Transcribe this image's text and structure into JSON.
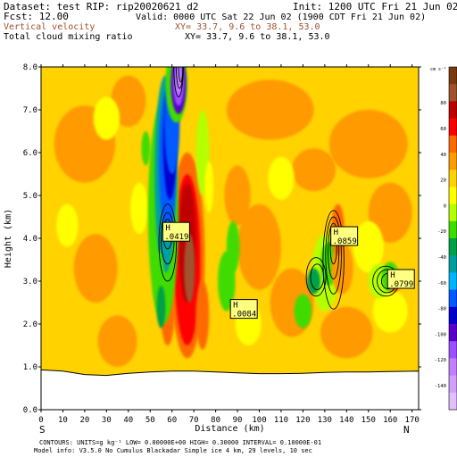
{
  "header": {
    "line1_left": "Dataset: test   RIP: rip20020621 d2",
    "line1_right": "Init: 1200 UTC Fri 21 Jun 02",
    "line2_left": "Fcst:    12.00",
    "line2_right": "Valid: 0000 UTC Sat 22 Jun 02 (1900 CDT Fri 21 Jun 02)",
    "line3_left": "Vertical velocity",
    "line3_right": "XY=  33.7,  9.6 to  38.1, 53.0",
    "line4_left": "Total cloud mixing ratio",
    "line4_right": "XY=  33.7,  9.6 to  38.1, 53.0"
  },
  "footer": {
    "line1": "CONTOURS:  UNITS=g kg⁻¹  LOW= 0.00000E+00  HIGH= 0.30000      INTERVAL=  0.10000E-01",
    "line2": "Model info: V3.5.0 No Cumulus Blackadar  Simple ice    4 km,   29 levels,   10 sec"
  },
  "colors": {
    "background_field": "#ffd200",
    "terrain": "#ffffff",
    "contour": "#000000"
  },
  "chart_data": {
    "type": "heatmap",
    "xlabel": "Distance (km)",
    "ylabel": "Height (km)",
    "xlim": [
      0,
      173
    ],
    "ylim": [
      0,
      8
    ],
    "x_ticks": [
      "0",
      "10",
      "20",
      "30",
      "40",
      "50",
      "60",
      "70",
      "80",
      "90",
      "100",
      "110",
      "120",
      "130",
      "140",
      "150",
      "160",
      "170"
    ],
    "y_ticks": [
      "0.0",
      "1.0",
      "2.0",
      "3.0",
      "4.0",
      "5.0",
      "6.0",
      "7.0",
      "8.0"
    ],
    "end_labels": {
      "left": "S",
      "right": "N"
    },
    "colorbar": {
      "units": "cm s⁻¹",
      "labels": [
        "80",
        "60",
        "40",
        "20",
        "0",
        "-20",
        "-40",
        "-60",
        "-80",
        "-100",
        "-120",
        "-140"
      ],
      "colors": [
        "#7a3a10",
        "#a0522d",
        "#c00000",
        "#ff0000",
        "#ff6a00",
        "#ff9a00",
        "#ffd200",
        "#ffff00",
        "#b5ff00",
        "#3fdc00",
        "#00a04a",
        "#00a0a0",
        "#00b4ff",
        "#005aff",
        "#0000d0",
        "#5a00c8",
        "#9a50ff",
        "#c080ff",
        "#d0a0ff",
        "#e0c0ff"
      ]
    },
    "vertical_velocity_features": [
      {
        "kind": "updraft",
        "x_center": 66,
        "y_center": 3.6,
        "max_value": 60
      },
      {
        "kind": "downdraft",
        "x_center": 60,
        "y_center": 5.5,
        "min_value": -100
      },
      {
        "kind": "downdraft",
        "x_center": 63,
        "y_center": 7.6,
        "min_value": -140
      }
    ],
    "cloud_highs": [
      {
        "label": "H",
        "value": ".0419",
        "x": 57,
        "y": 4.1
      },
      {
        "label": "H",
        "value": ".0859",
        "x": 134,
        "y": 4.0
      },
      {
        "label": "H",
        "value": ".0084",
        "x": 88,
        "y": 2.3
      },
      {
        "label": "H",
        "value": ".0799",
        "x": 160,
        "y": 3.0
      }
    ],
    "terrain_height_km": [
      [
        0,
        0.93
      ],
      [
        10,
        0.9
      ],
      [
        20,
        0.82
      ],
      [
        30,
        0.8
      ],
      [
        40,
        0.85
      ],
      [
        50,
        0.88
      ],
      [
        60,
        0.9
      ],
      [
        70,
        0.9
      ],
      [
        80,
        0.88
      ],
      [
        90,
        0.86
      ],
      [
        100,
        0.84
      ],
      [
        110,
        0.84
      ],
      [
        120,
        0.85
      ],
      [
        130,
        0.87
      ],
      [
        140,
        0.88
      ],
      [
        150,
        0.88
      ],
      [
        160,
        0.89
      ],
      [
        173,
        0.9
      ]
    ]
  }
}
